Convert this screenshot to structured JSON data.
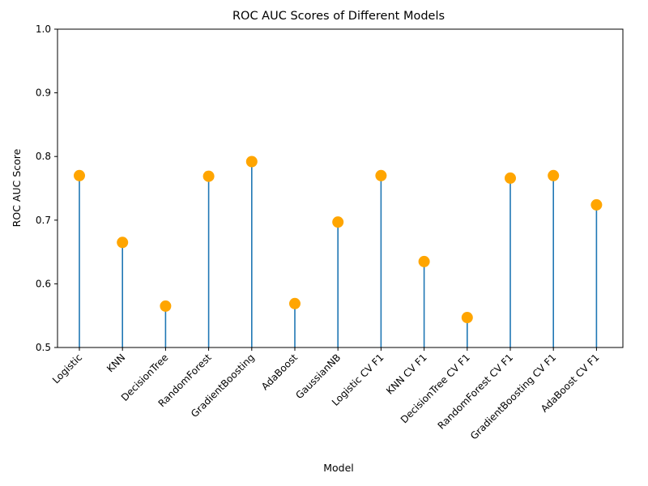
{
  "chart_data": {
    "type": "lollipop",
    "title": "ROC AUC Scores of Different Models",
    "xlabel": "Model",
    "ylabel": "ROC AUC Score",
    "ylim": [
      0.5,
      1.0
    ],
    "yticks": [
      "0.5",
      "0.6",
      "0.7",
      "0.8",
      "0.9",
      "1.0"
    ],
    "grid": false,
    "colors": {
      "stem": "#1f77b4",
      "marker": "#ffa500"
    },
    "categories": [
      "Logistic",
      "KNN",
      "DecisionTree",
      "RandomForest",
      "GradientBoosting",
      "AdaBoost",
      "GaussianNB",
      "Logistic CV F1",
      "KNN CV F1",
      "DecisionTree CV F1",
      "RandomForest CV F1",
      "GradientBoosting CV F1",
      "AdaBoost CV F1"
    ],
    "values": [
      0.77,
      0.665,
      0.565,
      0.769,
      0.792,
      0.569,
      0.697,
      0.77,
      0.635,
      0.547,
      0.766,
      0.77,
      0.724
    ]
  }
}
